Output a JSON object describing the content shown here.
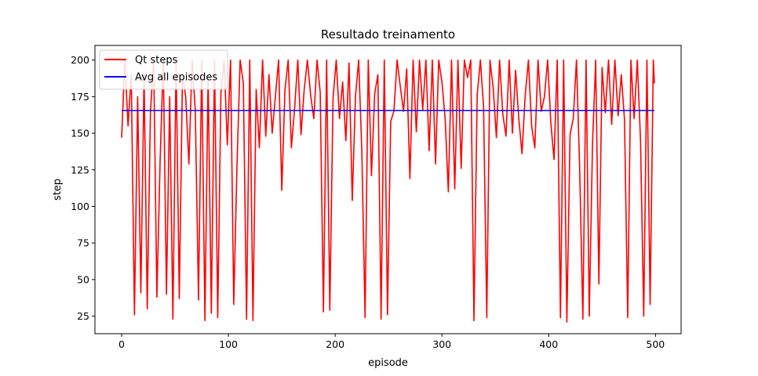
{
  "chart_data": {
    "type": "line",
    "title": "Resultado treinamento",
    "xlabel": "episode",
    "ylabel": "step",
    "xlim": [
      -25,
      524
    ],
    "ylim": [
      13,
      210
    ],
    "xticks": [
      0,
      100,
      200,
      300,
      400,
      500
    ],
    "yticks": [
      25,
      50,
      75,
      100,
      125,
      150,
      175,
      200
    ],
    "grid": false,
    "legend_position": "top-left",
    "series": [
      {
        "name": "Qt steps",
        "color": "#ff0000",
        "x": [
          0,
          3,
          6,
          9,
          12,
          15,
          18,
          21,
          24,
          27,
          30,
          33,
          36,
          39,
          42,
          45,
          48,
          51,
          54,
          57,
          60,
          63,
          66,
          69,
          72,
          75,
          78,
          81,
          84,
          87,
          90,
          93,
          96,
          99,
          102,
          105,
          108,
          111,
          114,
          117,
          120,
          123,
          126,
          129,
          132,
          135,
          138,
          141,
          144,
          147,
          150,
          153,
          156,
          159,
          162,
          165,
          168,
          171,
          174,
          177,
          180,
          183,
          186,
          189,
          192,
          195,
          198,
          201,
          204,
          207,
          210,
          213,
          216,
          219,
          222,
          225,
          228,
          231,
          234,
          237,
          240,
          243,
          246,
          249,
          252,
          255,
          258,
          261,
          264,
          267,
          270,
          273,
          276,
          279,
          282,
          285,
          288,
          291,
          294,
          297,
          300,
          303,
          306,
          309,
          312,
          315,
          318,
          321,
          324,
          327,
          330,
          333,
          336,
          339,
          342,
          345,
          348,
          351,
          354,
          357,
          360,
          363,
          366,
          369,
          372,
          375,
          378,
          381,
          384,
          387,
          390,
          393,
          396,
          399,
          402,
          405,
          408,
          411,
          414,
          417,
          420,
          423,
          426,
          429,
          432,
          435,
          438,
          441,
          444,
          447,
          450,
          453,
          456,
          459,
          462,
          465,
          468,
          471,
          474,
          477,
          480,
          483,
          486,
          489,
          492,
          495,
          498,
          499
        ],
        "values": [
          147,
          200,
          155,
          190,
          26,
          175,
          41,
          190,
          30,
          165,
          200,
          38,
          130,
          200,
          40,
          175,
          23,
          200,
          37,
          190,
          175,
          129,
          200,
          165,
          36,
          200,
          22,
          190,
          27,
          200,
          24,
          178,
          200,
          142,
          200,
          33,
          127,
          200,
          184,
          23,
          200,
          22,
          180,
          140,
          200,
          148,
          190,
          150,
          175,
          200,
          111,
          180,
          200,
          140,
          167,
          200,
          149,
          180,
          200,
          176,
          160,
          200,
          178,
          28,
          200,
          29,
          174,
          200,
          160,
          185,
          145,
          198,
          104,
          175,
          200,
          137,
          24,
          200,
          121,
          177,
          190,
          23,
          200,
          26,
          158,
          165,
          200,
          182,
          165,
          194,
          119,
          200,
          151,
          200,
          166,
          200,
          138,
          200,
          129,
          200,
          185,
          160,
          110,
          200,
          112,
          200,
          126,
          200,
          188,
          200,
          22,
          176,
          200,
          168,
          24,
          200,
          181,
          147,
          200,
          163,
          148,
          200,
          150,
          193,
          160,
          136,
          176,
          200,
          155,
          140,
          200,
          165,
          175,
          200,
          157,
          132,
          200,
          24,
          200,
          21,
          149,
          160,
          200,
          126,
          23,
          200,
          25,
          142,
          200,
          47,
          195,
          164,
          200,
          156,
          200,
          162,
          190,
          159,
          24,
          200,
          160,
          200,
          145,
          25,
          200,
          33,
          200,
          184
        ]
      },
      {
        "name": "Avg all episodes",
        "color": "#0000ff",
        "x": [
          0,
          499
        ],
        "values": [
          165.5,
          165.5
        ]
      }
    ]
  }
}
